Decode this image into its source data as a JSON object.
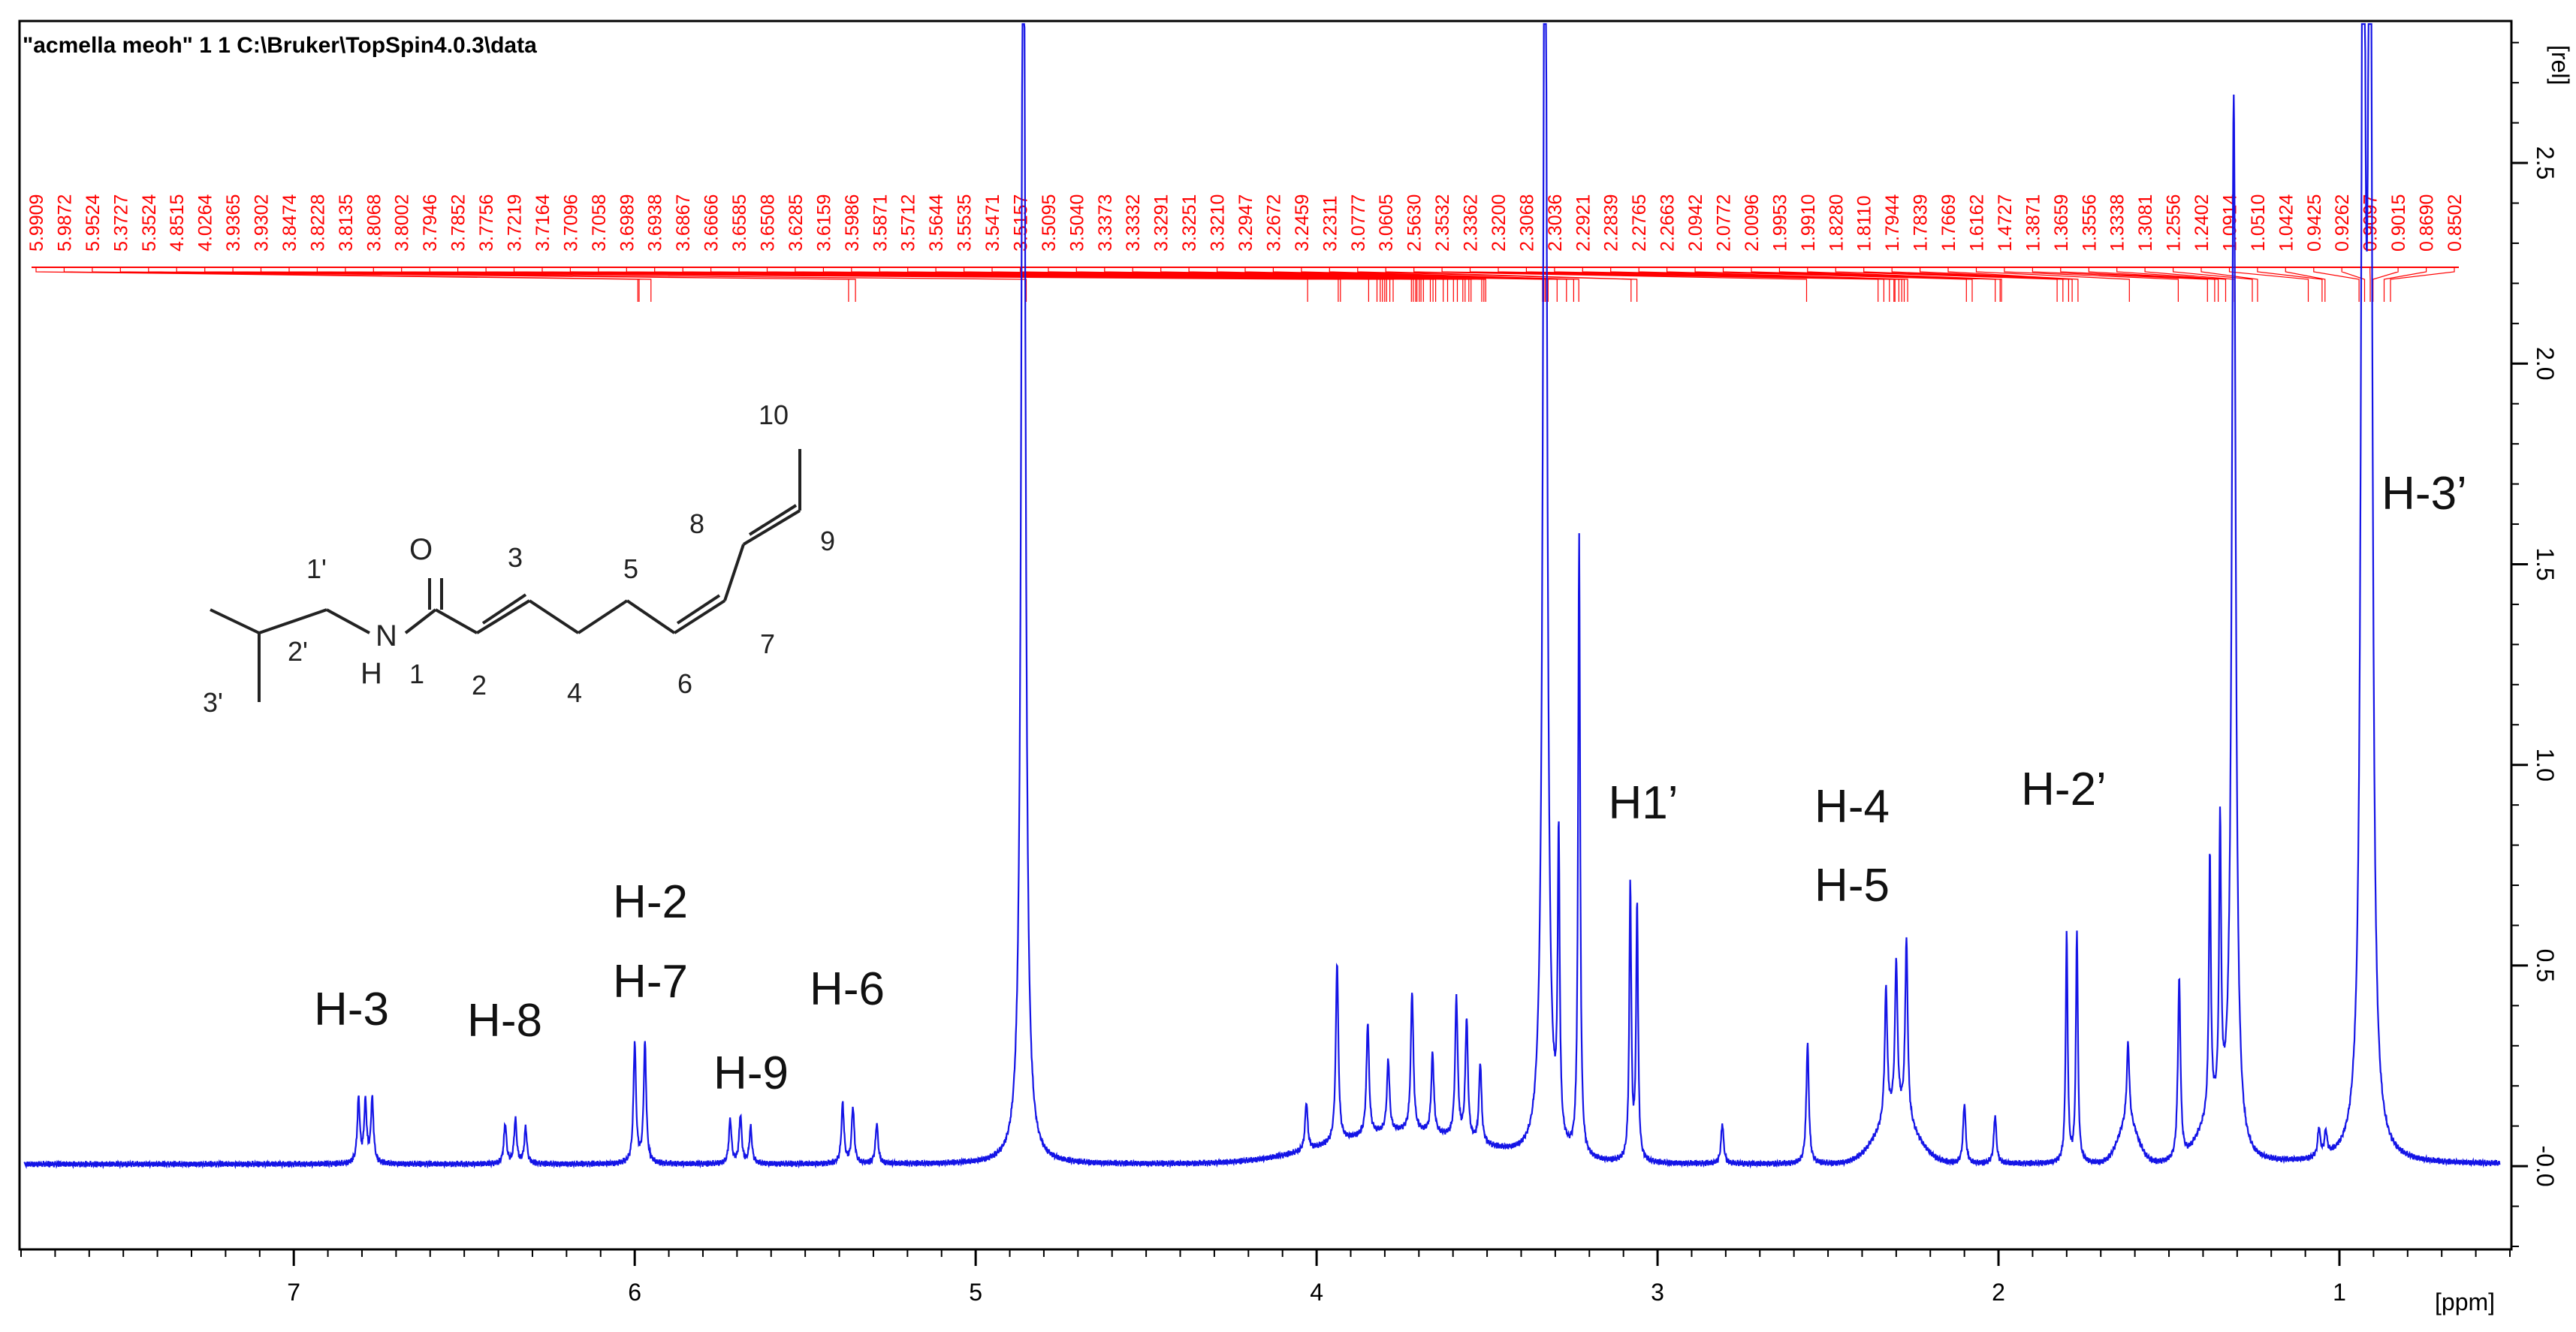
{
  "header": {
    "title": "\"acmella meoh\"  1  1  C:\\Bruker\\TopSpin4.0.3\\data"
  },
  "colors": {
    "spectrum": "#1414e6",
    "peak_labels": "#ff0000",
    "axis": "#000000",
    "background": "#ffffff"
  },
  "chart_data": {
    "type": "line",
    "title": "\"acmella meoh\"  1  1  C:\\Bruker\\TopSpin4.0.3\\data",
    "xlabel": "[ppm]",
    "ylabel": "[rel]",
    "x_reversed": true,
    "xlim": [
      7.8,
      0.5
    ],
    "ylim": [
      -0.2,
      2.85
    ],
    "x_ticks": [
      "7",
      "6",
      "5",
      "4",
      "3",
      "2",
      "1"
    ],
    "y_ticks": [
      "-0.0",
      "0.5",
      "1.0",
      "1.5",
      "2.0",
      "2.5"
    ],
    "grid": false,
    "series": [
      {
        "peaks": [
          {
            "ppm": 6.81,
            "h": 0.16
          },
          {
            "ppm": 6.79,
            "h": 0.15
          },
          {
            "ppm": 6.77,
            "h": 0.16
          },
          {
            "ppm": 6.38,
            "h": 0.1
          },
          {
            "ppm": 6.35,
            "h": 0.11
          },
          {
            "ppm": 6.32,
            "h": 0.09
          },
          {
            "ppm": 6.0,
            "h": 0.3
          },
          {
            "ppm": 5.97,
            "h": 0.3
          },
          {
            "ppm": 5.72,
            "h": 0.11
          },
          {
            "ppm": 5.69,
            "h": 0.12
          },
          {
            "ppm": 5.66,
            "h": 0.09
          },
          {
            "ppm": 5.39,
            "h": 0.15
          },
          {
            "ppm": 5.36,
            "h": 0.14
          },
          {
            "ppm": 5.29,
            "h": 0.1
          },
          {
            "ppm": 4.86,
            "h": 3.5
          },
          {
            "ppm": 4.03,
            "h": 0.12
          },
          {
            "ppm": 3.94,
            "h": 0.45
          },
          {
            "ppm": 3.85,
            "h": 0.28
          },
          {
            "ppm": 3.79,
            "h": 0.18
          },
          {
            "ppm": 3.72,
            "h": 0.35
          },
          {
            "ppm": 3.66,
            "h": 0.2
          },
          {
            "ppm": 3.59,
            "h": 0.35
          },
          {
            "ppm": 3.56,
            "h": 0.3
          },
          {
            "ppm": 3.52,
            "h": 0.2
          },
          {
            "ppm": 3.33,
            "h": 3.5
          },
          {
            "ppm": 3.29,
            "h": 0.75
          },
          {
            "ppm": 3.23,
            "h": 1.55
          },
          {
            "ppm": 3.08,
            "h": 0.69
          },
          {
            "ppm": 3.06,
            "h": 0.64
          },
          {
            "ppm": 2.81,
            "h": 0.1
          },
          {
            "ppm": 2.56,
            "h": 0.3
          },
          {
            "ppm": 2.33,
            "h": 0.33
          },
          {
            "ppm": 2.3,
            "h": 0.38
          },
          {
            "ppm": 2.27,
            "h": 0.45
          },
          {
            "ppm": 2.1,
            "h": 0.15
          },
          {
            "ppm": 2.01,
            "h": 0.12
          },
          {
            "ppm": 1.8,
            "h": 0.57
          },
          {
            "ppm": 1.77,
            "h": 0.58
          },
          {
            "ppm": 1.62,
            "h": 0.2
          },
          {
            "ppm": 1.47,
            "h": 0.45
          },
          {
            "ppm": 1.38,
            "h": 0.65
          },
          {
            "ppm": 1.35,
            "h": 0.72
          },
          {
            "ppm": 1.31,
            "h": 2.62
          },
          {
            "ppm": 1.06,
            "h": 0.07
          },
          {
            "ppm": 1.04,
            "h": 0.06
          },
          {
            "ppm": 0.93,
            "h": 3.5
          },
          {
            "ppm": 0.91,
            "h": 3.4
          }
        ]
      }
    ],
    "peak_labels": [
      "5.9909",
      "5.9872",
      "5.9524",
      "5.3727",
      "5.3524",
      "4.8515",
      "4.0264",
      "3.9365",
      "3.9302",
      "3.8474",
      "3.8228",
      "3.8135",
      "3.8068",
      "3.8002",
      "3.7946",
      "3.7852",
      "3.7756",
      "3.7219",
      "3.7164",
      "3.7096",
      "3.7058",
      "3.6989",
      "3.6938",
      "3.6867",
      "3.6666",
      "3.6585",
      "3.6508",
      "3.6285",
      "3.6159",
      "3.5986",
      "3.5871",
      "3.5712",
      "3.5644",
      "3.5535",
      "3.5471",
      "3.5157",
      "3.5095",
      "3.5040",
      "3.3373",
      "3.3332",
      "3.3291",
      "3.3251",
      "3.3210",
      "3.2947",
      "3.2672",
      "3.2459",
      "3.2311",
      "3.0777",
      "3.0605",
      "2.5630",
      "2.3532",
      "2.3362",
      "2.3200",
      "2.3068",
      "2.3036",
      "2.2921",
      "2.2839",
      "2.2765",
      "2.2663",
      "2.0942",
      "2.0772",
      "2.0096",
      "1.9953",
      "1.9910",
      "1.8280",
      "1.8110",
      "1.7944",
      "1.7839",
      "1.7669",
      "1.6162",
      "1.4727",
      "1.3871",
      "1.3659",
      "1.3556",
      "1.3338",
      "1.3081",
      "1.2556",
      "1.2402",
      "1.0914",
      "1.0510",
      "1.0424",
      "0.9425",
      "0.9262",
      "0.9097",
      "0.9015",
      "0.8690",
      "0.8502"
    ],
    "annotations": [
      {
        "text": "H-3",
        "anchor_ppm": 6.8
      },
      {
        "text": "H-8",
        "anchor_ppm": 6.35
      },
      {
        "text": "H-2",
        "anchor_ppm": 5.97
      },
      {
        "text": "H-7",
        "anchor_ppm": 5.97
      },
      {
        "text": "H-9",
        "anchor_ppm": 5.69
      },
      {
        "text": "H-6",
        "anchor_ppm": 5.35
      },
      {
        "text": "H1’",
        "anchor_ppm": 3.07
      },
      {
        "text": "H-4",
        "anchor_ppm": 2.3
      },
      {
        "text": "H-5",
        "anchor_ppm": 2.3
      },
      {
        "text": "H-2’",
        "anchor_ppm": 1.78
      },
      {
        "text": "H-3’",
        "anchor_ppm": 0.93
      }
    ]
  },
  "structure": {
    "atom_labels": [
      "O",
      "N",
      "H",
      "1'",
      "2'",
      "3'",
      "1",
      "2",
      "3",
      "4",
      "5",
      "6",
      "7",
      "8",
      "9",
      "10"
    ]
  }
}
